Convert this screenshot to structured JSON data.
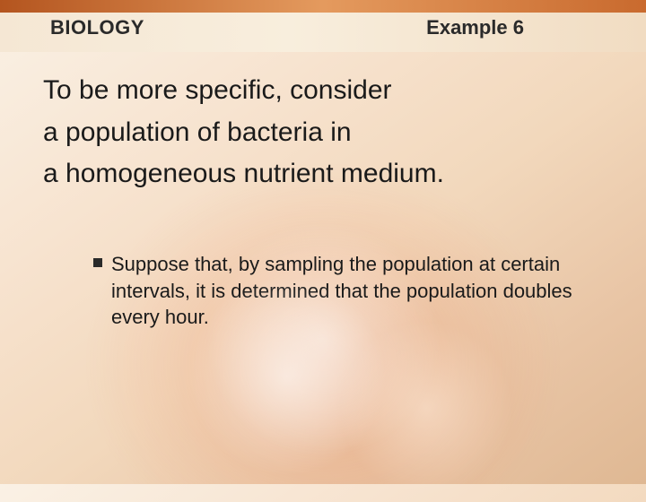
{
  "header": {
    "left": "BIOLOGY",
    "right": "Example 6"
  },
  "main": {
    "line1": "To be more specific, consider",
    "line2": "a population of bacteria in",
    "line3": "a homogeneous nutrient medium."
  },
  "bullet": {
    "text": "Suppose that, by sampling the population at certain intervals, it is determined that the population doubles every hour."
  },
  "style": {
    "bg_gradient_stops": [
      "#faf1e5",
      "#f7e3cf",
      "#f2d8bc",
      "#e8c4a4",
      "#dfb893"
    ],
    "top_band_colors": [
      "#b4551f",
      "#e49a5e",
      "#c96a2e"
    ],
    "sub_band_colors": [
      "#f5e7d4",
      "#f8eedd",
      "#f1dcc2"
    ],
    "title_fontsize": 22,
    "body_fontsize": 30,
    "bullet_fontsize": 22,
    "text_color": "#1a1a1a",
    "bullet_marker_color": "#2a2a2a",
    "bullet_marker_size": 10
  }
}
